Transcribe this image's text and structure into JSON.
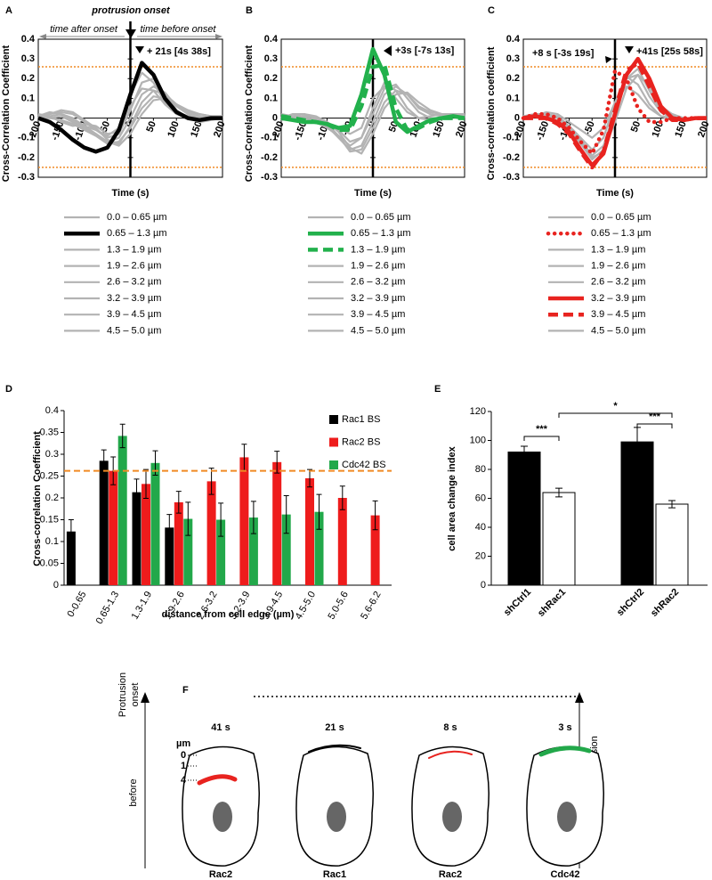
{
  "chart_data": [
    {
      "panel": "A",
      "type": "line",
      "xlabel": "Time (s)",
      "ylabel": "Cross-Correlation Coefficient",
      "onset_label": "protrusion onset",
      "time_labels": [
        "time after onset",
        "time before onset"
      ],
      "annotations": [
        "+ 21s [4s 38s]"
      ],
      "x": [
        -200,
        -175,
        -150,
        -125,
        -100,
        -75,
        -50,
        -25,
        0,
        25,
        50,
        75,
        100,
        125,
        150,
        175,
        200
      ],
      "xlim": [
        -200,
        200
      ],
      "xticks": [
        -200,
        -150,
        -100,
        -50,
        0,
        50,
        100,
        150,
        200
      ],
      "ylim": [
        -0.3,
        0.4
      ],
      "yticks": [
        -0.3,
        -0.2,
        -0.1,
        0,
        0.1,
        0.2,
        0.3,
        0.4
      ],
      "thresholds": [
        0.26,
        -0.25
      ],
      "threshold_color": "#f08a24",
      "series": [
        {
          "name": "0.0 – 0.65 µm",
          "color": "#b3b3b3",
          "dash": "solid",
          "values": [
            0,
            0.02,
            0.03,
            0.02,
            -0.02,
            -0.06,
            -0.09,
            -0.05,
            0.06,
            0.15,
            0.14,
            0.07,
            0.02,
            0,
            -0.01,
            0,
            0
          ]
        },
        {
          "name": "0.65 – 1.3 µm",
          "color": "#000000",
          "dash": "solid",
          "values": [
            0,
            -0.02,
            -0.06,
            -0.11,
            -0.15,
            -0.17,
            -0.15,
            -0.06,
            0.12,
            0.28,
            0.22,
            0.1,
            0.03,
            0,
            -0.01,
            0,
            0
          ]
        },
        {
          "name": "1.3 – 1.9 µm",
          "color": "#b3b3b3",
          "dash": "solid",
          "values": [
            0.02,
            0.01,
            -0.02,
            -0.04,
            -0.03,
            -0.04,
            -0.08,
            -0.07,
            0.12,
            0.23,
            0.18,
            0.08,
            0.03,
            0.01,
            0,
            0,
            0.01
          ]
        },
        {
          "name": "1.9 – 2.6 µm",
          "color": "#b3b3b3",
          "dash": "solid",
          "values": [
            0.01,
            0.03,
            0.02,
            -0.01,
            -0.04,
            -0.06,
            -0.1,
            -0.08,
            0.04,
            0.18,
            0.2,
            0.12,
            0.04,
            0,
            -0.02,
            -0.01,
            0
          ]
        },
        {
          "name": "2.6 – 3.2 µm",
          "color": "#b3b3b3",
          "dash": "solid",
          "values": [
            -0.01,
            0,
            0.01,
            -0.02,
            -0.05,
            -0.08,
            -0.12,
            -0.1,
            0,
            0.12,
            0.16,
            0.13,
            0.06,
            0.02,
            0,
            0,
            0.01
          ]
        },
        {
          "name": "3.2 – 3.9 µm",
          "color": "#b3b3b3",
          "dash": "solid",
          "values": [
            0,
            0.02,
            0.04,
            0.03,
            -0.01,
            -0.05,
            -0.11,
            -0.13,
            -0.04,
            0.08,
            0.14,
            0.12,
            0.07,
            0.03,
            0.01,
            0,
            0
          ]
        },
        {
          "name": "3.9 – 4.5 µm",
          "color": "#b3b3b3",
          "dash": "solid",
          "values": [
            0.01,
            0,
            -0.01,
            -0.03,
            -0.06,
            -0.09,
            -0.13,
            -0.12,
            -0.05,
            0.05,
            0.11,
            0.1,
            0.06,
            0.03,
            0.02,
            0.01,
            0
          ]
        },
        {
          "name": "4.5 – 5.0 µm",
          "color": "#b3b3b3",
          "dash": "solid",
          "values": [
            0,
            0.01,
            0.02,
            0,
            -0.04,
            -0.08,
            -0.12,
            -0.14,
            -0.08,
            0.02,
            0.09,
            0.1,
            0.07,
            0.04,
            0.02,
            0.01,
            0.01
          ]
        }
      ]
    },
    {
      "panel": "B",
      "type": "line",
      "xlabel": "Time (s)",
      "ylabel": "Cross-Correlation Coefficient",
      "annotations": [
        "+3s [-7s 13s]"
      ],
      "x": [
        -200,
        -175,
        -150,
        -125,
        -100,
        -75,
        -50,
        -25,
        0,
        25,
        50,
        75,
        100,
        125,
        150,
        175,
        200
      ],
      "xlim": [
        -200,
        200
      ],
      "xticks": [
        -200,
        -150,
        -100,
        -50,
        0,
        50,
        100,
        150,
        200
      ],
      "ylim": [
        -0.3,
        0.4
      ],
      "yticks": [
        -0.3,
        -0.2,
        -0.1,
        0,
        0.1,
        0.2,
        0.3,
        0.4
      ],
      "thresholds": [
        0.26,
        -0.25
      ],
      "threshold_color": "#f08a24",
      "series": [
        {
          "name": "0.0 – 0.65 µm",
          "color": "#b3b3b3",
          "dash": "solid",
          "values": [
            0.02,
            0.01,
            0,
            -0.01,
            -0.03,
            -0.05,
            -0.08,
            -0.05,
            0.1,
            0.16,
            0.1,
            0.03,
            0,
            0.01,
            0.02,
            0.02,
            0.01
          ]
        },
        {
          "name": "0.65 – 1.3 µm",
          "color": "#22b14c",
          "dash": "solid",
          "values": [
            0,
            -0.01,
            -0.02,
            -0.02,
            -0.03,
            -0.05,
            -0.04,
            0.12,
            0.35,
            0.22,
            -0.02,
            -0.07,
            -0.04,
            -0.01,
            0,
            0.01,
            0
          ]
        },
        {
          "name": "1.3 – 1.9 µm",
          "color": "#22b14c",
          "dash": "dashed",
          "values": [
            0.01,
            0,
            -0.01,
            -0.02,
            -0.03,
            -0.06,
            -0.06,
            0.06,
            0.26,
            0.27,
            0.05,
            -0.06,
            -0.05,
            -0.02,
            0,
            0,
            0
          ]
        },
        {
          "name": "1.9 – 2.6 µm",
          "color": "#b3b3b3",
          "dash": "solid",
          "values": [
            0,
            0.02,
            0.02,
            0,
            -0.02,
            -0.06,
            -0.12,
            -0.1,
            0.05,
            0.18,
            0.14,
            0.05,
            0,
            -0.01,
            0,
            0.02,
            0.02
          ]
        },
        {
          "name": "2.6 – 3.2 µm",
          "color": "#b3b3b3",
          "dash": "solid",
          "values": [
            0.01,
            0.01,
            0,
            -0.02,
            -0.05,
            -0.09,
            -0.14,
            -0.1,
            0.02,
            0.15,
            0.17,
            0.1,
            0.03,
            0,
            0,
            0.01,
            0.02
          ]
        },
        {
          "name": "3.2 – 3.9 µm",
          "color": "#b3b3b3",
          "dash": "solid",
          "values": [
            0,
            0,
            0.01,
            0,
            -0.04,
            -0.1,
            -0.16,
            -0.14,
            -0.02,
            0.12,
            0.16,
            0.12,
            0.05,
            0.02,
            0.01,
            0.02,
            0.01
          ]
        },
        {
          "name": "3.9 – 4.5 µm",
          "color": "#b3b3b3",
          "dash": "solid",
          "values": [
            -0.01,
            0,
            0.01,
            0,
            -0.03,
            -0.09,
            -0.17,
            -0.16,
            -0.05,
            0.08,
            0.14,
            0.12,
            0.06,
            0.03,
            0.02,
            0.01,
            0
          ]
        },
        {
          "name": "4.5 – 5.0 µm",
          "color": "#b3b3b3",
          "dash": "solid",
          "values": [
            0,
            0.01,
            0.02,
            0.01,
            -0.02,
            -0.07,
            -0.15,
            -0.18,
            -0.08,
            0.05,
            0.12,
            0.13,
            0.08,
            0.04,
            0.02,
            0.01,
            0.01
          ]
        }
      ]
    },
    {
      "panel": "C",
      "type": "line",
      "xlabel": "Time (s)",
      "ylabel": "Cross-correlation coefficient",
      "annotations": [
        "+8 s [-3s 19s]",
        "+41s [25s 58s]"
      ],
      "x": [
        -200,
        -175,
        -150,
        -125,
        -100,
        -75,
        -50,
        -25,
        0,
        25,
        50,
        75,
        100,
        125,
        150,
        175,
        200
      ],
      "xlim": [
        -200,
        200
      ],
      "xticks": [
        -200,
        -150,
        -100,
        -50,
        0,
        50,
        100,
        150,
        200
      ],
      "ylim": [
        -0.3,
        0.4
      ],
      "yticks": [
        -0.3,
        -0.2,
        -0.1,
        0,
        0.1,
        0.2,
        0.3,
        0.4
      ],
      "thresholds": [
        0.26,
        -0.25
      ],
      "threshold_color": "#f08a24",
      "series": [
        {
          "name": "0.0 – 0.65 µm",
          "color": "#b3b3b3",
          "dash": "solid",
          "values": [
            0,
            0.01,
            0.03,
            0.02,
            -0.02,
            -0.06,
            -0.1,
            -0.05,
            0.08,
            0.16,
            0.12,
            0.05,
            0.01,
            0,
            0,
            0,
            0
          ]
        },
        {
          "name": "0.65 – 1.3 µm",
          "color": "#e8231f",
          "dash": "dotted",
          "values": [
            0,
            0.02,
            0.02,
            0,
            -0.05,
            -0.12,
            -0.18,
            -0.06,
            0.24,
            0.2,
            0.05,
            -0.02,
            -0.02,
            0,
            0,
            0,
            0
          ]
        },
        {
          "name": "1.3 – 1.9 µm",
          "color": "#b3b3b3",
          "dash": "solid",
          "values": [
            0.01,
            0.02,
            0.02,
            0,
            -0.04,
            -0.1,
            -0.16,
            -0.1,
            0.08,
            0.21,
            0.17,
            0.07,
            0.01,
            -0.01,
            0,
            0,
            0
          ]
        },
        {
          "name": "1.9 – 2.6 µm",
          "color": "#b3b3b3",
          "dash": "solid",
          "values": [
            0,
            0.01,
            0.02,
            0.01,
            -0.04,
            -0.11,
            -0.19,
            -0.14,
            0.04,
            0.2,
            0.22,
            0.11,
            0.03,
            0,
            0,
            0,
            0
          ]
        },
        {
          "name": "2.6 – 3.2 µm",
          "color": "#b3b3b3",
          "dash": "solid",
          "values": [
            0,
            0.01,
            0.01,
            0,
            -0.05,
            -0.13,
            -0.21,
            -0.16,
            0.02,
            0.2,
            0.25,
            0.14,
            0.04,
            0.01,
            0,
            0,
            0
          ]
        },
        {
          "name": "3.2 – 3.9 µm",
          "color": "#e8231f",
          "dash": "solid",
          "values": [
            0,
            0.01,
            0,
            -0.02,
            -0.07,
            -0.16,
            -0.24,
            -0.18,
            0.02,
            0.22,
            0.3,
            0.2,
            0.06,
            0,
            -0.01,
            0,
            0
          ]
        },
        {
          "name": "3.9 – 4.5 µm",
          "color": "#e8231f",
          "dash": "dashed",
          "values": [
            0,
            0,
            0,
            -0.03,
            -0.08,
            -0.17,
            -0.25,
            -0.17,
            0.04,
            0.24,
            0.28,
            0.16,
            0.04,
            -0.01,
            -0.01,
            0,
            0
          ]
        },
        {
          "name": "4.5 – 5.0 µm",
          "color": "#b3b3b3",
          "dash": "solid",
          "values": [
            0.01,
            0.01,
            0.01,
            0,
            -0.04,
            -0.12,
            -0.2,
            -0.17,
            -0.02,
            0.15,
            0.22,
            0.16,
            0.06,
            0.02,
            0,
            0,
            0
          ]
        }
      ]
    },
    {
      "panel": "D",
      "type": "grouped-bar",
      "xlabel": "distance from cell edge (µm)",
      "ylabel": "Cross-correlation Coefficient",
      "categories": [
        "0-0.65",
        "0.65-1.3",
        "1.3-1.9",
        "1.9-2.6",
        "2.6-3.2",
        "3.2-3.9",
        "3.9-4.5",
        "4.5-5.0",
        "5.0-5.6",
        "5.6-6.2"
      ],
      "ylim": [
        0,
        0.4
      ],
      "yticks": [
        0,
        0.05,
        0.1,
        0.15,
        0.2,
        0.25,
        0.3,
        0.35,
        0.4
      ],
      "threshold": 0.262,
      "threshold_color": "#f08a24",
      "legend": "top-right",
      "series": [
        {
          "name": "Rac1 BS",
          "color": "#000000",
          "values": [
            0.123,
            0.285,
            0.213,
            0.132,
            null,
            null,
            null,
            null,
            null,
            null
          ],
          "errors": [
            0.027,
            0.025,
            0.03,
            0.03,
            null,
            null,
            null,
            null,
            null,
            null
          ]
        },
        {
          "name": "Rac2 BS",
          "color": "#ee1c1c",
          "values": [
            null,
            0.262,
            0.232,
            0.19,
            0.238,
            0.293,
            0.282,
            0.245,
            0.2,
            0.16
          ],
          "errors": [
            null,
            0.032,
            0.033,
            0.025,
            0.03,
            0.03,
            0.025,
            0.02,
            0.027,
            0.033
          ]
        },
        {
          "name": "Cdc42 BS",
          "color": "#22a84a",
          "values": [
            null,
            0.342,
            0.28,
            0.152,
            0.15,
            0.155,
            0.162,
            0.168,
            null,
            null
          ],
          "errors": [
            null,
            0.027,
            0.028,
            0.038,
            0.038,
            0.037,
            0.043,
            0.04,
            null,
            null
          ]
        }
      ]
    },
    {
      "panel": "E",
      "type": "bar",
      "ylabel": "cell area change index",
      "categories": [
        "shCtrl1",
        "shRac1",
        "shCtrl2",
        "shRac2"
      ],
      "values": [
        92,
        64,
        99,
        56
      ],
      "errors": [
        4,
        3,
        10,
        2.5
      ],
      "colors": [
        "#000000",
        "#ffffff",
        "#000000",
        "#ffffff"
      ],
      "ylim": [
        0,
        120
      ],
      "yticks": [
        0,
        20,
        40,
        60,
        80,
        100,
        120
      ],
      "significance": [
        {
          "from": "shCtrl1",
          "to": "shRac1",
          "label": "***"
        },
        {
          "from": "shRac1",
          "to": "shRac2",
          "label": "*"
        },
        {
          "from": "shCtrl2",
          "to": "shRac2",
          "label": "***"
        }
      ]
    }
  ],
  "diagram": {
    "panel": "F",
    "onset_label": [
      "Protrusion",
      "onset"
    ],
    "before_label": "before",
    "direction_label": "Direction of protrusion",
    "depth_unit": "µm",
    "depth_marks": [
      "0",
      "1",
      "4"
    ],
    "cells": [
      {
        "time": "41 s",
        "protein": "Rac2",
        "color": "#e8231f"
      },
      {
        "time": "21 s",
        "protein": "Rac1",
        "color": "#000000"
      },
      {
        "time": "8 s",
        "protein": "Rac2",
        "color": "#e8231f"
      },
      {
        "time": "3 s",
        "protein": "Cdc42",
        "color": "#22a84a"
      }
    ]
  }
}
